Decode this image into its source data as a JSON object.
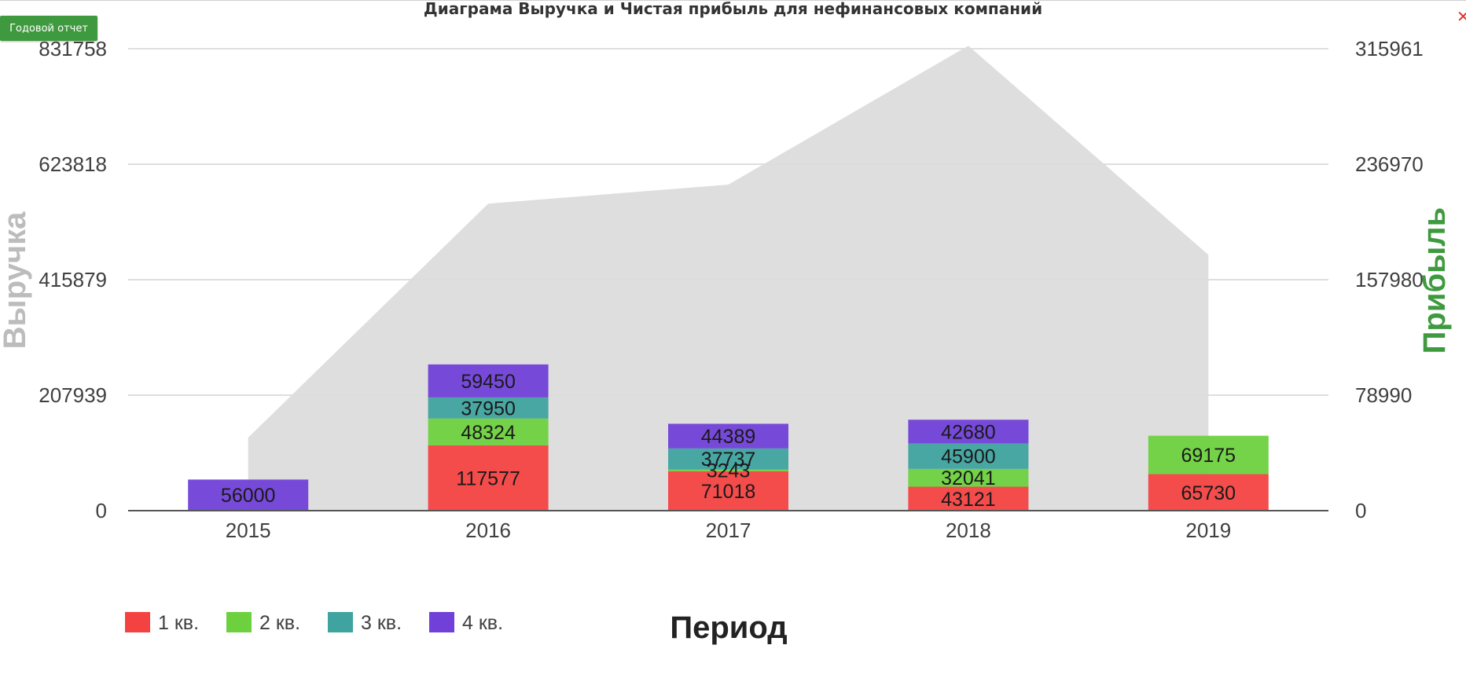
{
  "title": "Диаграма Выручка и Чистая прибыль для нефинансовых компаний",
  "annual_report_button": "Годовой отчет",
  "close_glyph": "✕",
  "colors": {
    "q1": "#f44242",
    "q2": "#6dd13f",
    "q3": "#3fa39f",
    "q4": "#7140d8",
    "area": "#dcdcdc",
    "left_axis_label": "#bcbcbc",
    "right_axis_label": "#3f9a3f"
  },
  "chart_data": {
    "type": "bar",
    "stacked": true,
    "categories": [
      "2015",
      "2016",
      "2017",
      "2018",
      "2019"
    ],
    "xlabel": "Период",
    "ylabel": "Выручка",
    "y2label": "Прибыль",
    "ylim": [
      0,
      831758
    ],
    "y2lim": [
      0,
      315961
    ],
    "yticks": [
      "0",
      "207939",
      "415879",
      "623818",
      "831758"
    ],
    "y2ticks": [
      "0",
      "78990",
      "157980",
      "236970",
      "315961"
    ],
    "grid": true,
    "legend_position": "bottom-left",
    "series": [
      {
        "name": "1 кв.",
        "color_key": "q1",
        "values": [
          0,
          117577,
          71018,
          43121,
          65730
        ]
      },
      {
        "name": "2 кв.",
        "color_key": "q2",
        "values": [
          0,
          48324,
          3243,
          32041,
          69175
        ]
      },
      {
        "name": "3 кв.",
        "color_key": "q3",
        "values": [
          0,
          37950,
          37737,
          45900,
          0
        ]
      },
      {
        "name": "4 кв.",
        "color_key": "q4",
        "values": [
          56000,
          59450,
          44389,
          42680,
          0
        ]
      }
    ],
    "profit_area": {
      "axis": "right",
      "values": [
        50000,
        210000,
        223000,
        318000,
        175000
      ]
    }
  }
}
